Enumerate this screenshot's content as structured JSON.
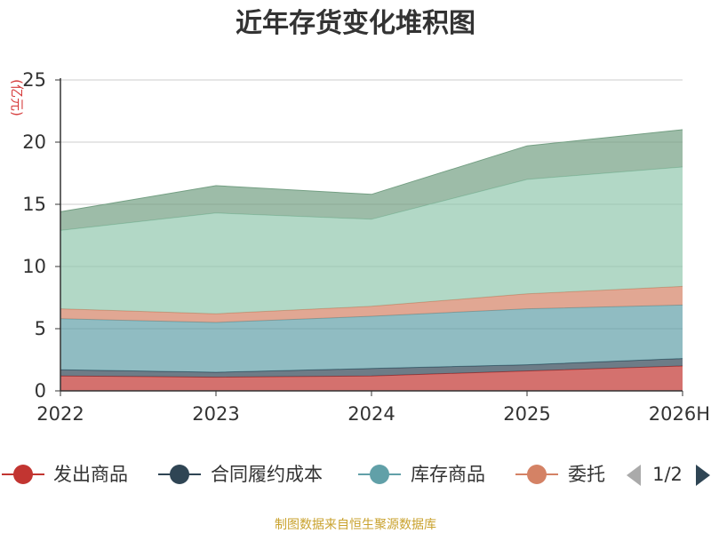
{
  "chart_data": {
    "type": "area",
    "stacked": true,
    "title": "近年存货变化堆积图",
    "ylabel": "(亿元)",
    "categories": [
      "2022",
      "2023",
      "2024",
      "2025",
      "2026H"
    ],
    "ylim": [
      0,
      25
    ],
    "yticks": [
      0,
      5,
      10,
      15,
      20,
      25
    ],
    "grid": true,
    "series": [
      {
        "name": "发出商品",
        "color": "#c23531",
        "values": [
          1.2,
          1.1,
          1.2,
          1.6,
          2.0
        ]
      },
      {
        "name": "合同履约成本",
        "color": "#2f4554",
        "values": [
          0.5,
          0.4,
          0.6,
          0.5,
          0.6
        ]
      },
      {
        "name": "库存商品",
        "color": "#61a0a8",
        "values": [
          4.1,
          4.0,
          4.2,
          4.5,
          4.3
        ]
      },
      {
        "name": "委托加工物资",
        "color": "#d48265",
        "values": [
          0.8,
          0.7,
          0.8,
          1.2,
          1.5
        ]
      },
      {
        "name": "",
        "color": "#91c7ae",
        "values": [
          6.3,
          8.1,
          7.0,
          9.2,
          9.6
        ]
      },
      {
        "name": "",
        "color": "#749f83",
        "values": [
          1.5,
          2.2,
          2.0,
          2.7,
          3.0
        ]
      }
    ]
  },
  "legend": {
    "items": [
      "发出商品",
      "合同履约成本",
      "库存商品",
      "委托"
    ],
    "page": "1/2"
  },
  "source": "制图数据来自恒生聚源数据库"
}
